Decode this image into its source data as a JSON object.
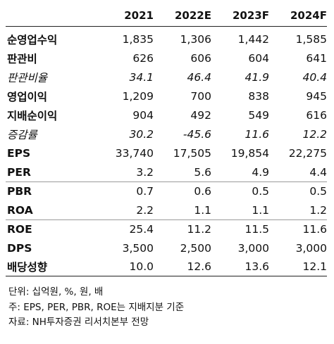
{
  "table": {
    "header": [
      "",
      "2021",
      "2022E",
      "2023F",
      "2024F"
    ],
    "rows": [
      {
        "label": "순영업수익",
        "values": [
          "1,835",
          "1,306",
          "1,442",
          "1,585"
        ],
        "italic": false
      },
      {
        "label": "판관비",
        "values": [
          "626",
          "606",
          "604",
          "641"
        ],
        "italic": false
      },
      {
        "label": "판관비율",
        "values": [
          "34.1",
          "46.4",
          "41.9",
          "40.4"
        ],
        "italic": true
      },
      {
        "label": "영업이익",
        "values": [
          "1,209",
          "700",
          "838",
          "945"
        ],
        "italic": false
      },
      {
        "label": "지배순이익",
        "values": [
          "904",
          "492",
          "549",
          "616"
        ],
        "italic": false
      },
      {
        "label": "증감률",
        "values": [
          "30.2",
          "-45.6",
          "11.6",
          "12.2"
        ],
        "italic": true
      },
      {
        "label": "EPS",
        "values": [
          "33,740",
          "17,505",
          "19,854",
          "22,275"
        ],
        "italic": false
      },
      {
        "label": "PER",
        "values": [
          "3.2",
          "5.6",
          "4.9",
          "4.4"
        ],
        "italic": false
      },
      {
        "label": "PBR",
        "values": [
          "0.7",
          "0.6",
          "0.5",
          "0.5"
        ],
        "italic": false
      },
      {
        "label": "ROA",
        "values": [
          "2.2",
          "1.1",
          "1.1",
          "1.2"
        ],
        "italic": false
      },
      {
        "label": "ROE",
        "values": [
          "25.4",
          "11.2",
          "11.5",
          "11.6"
        ],
        "italic": false
      },
      {
        "label": "DPS",
        "values": [
          "3,500",
          "2,500",
          "3,000",
          "3,000"
        ],
        "italic": false
      },
      {
        "label": "배당성향",
        "values": [
          "10.0",
          "12.6",
          "13.6",
          "12.1"
        ],
        "italic": false
      }
    ]
  },
  "notes": [
    "단위: 십억원, %, 원, 배",
    "주: EPS, PER, PBR, ROE는 지배지분 기준",
    "자료: NH투자증권 리서치본부 전망"
  ]
}
